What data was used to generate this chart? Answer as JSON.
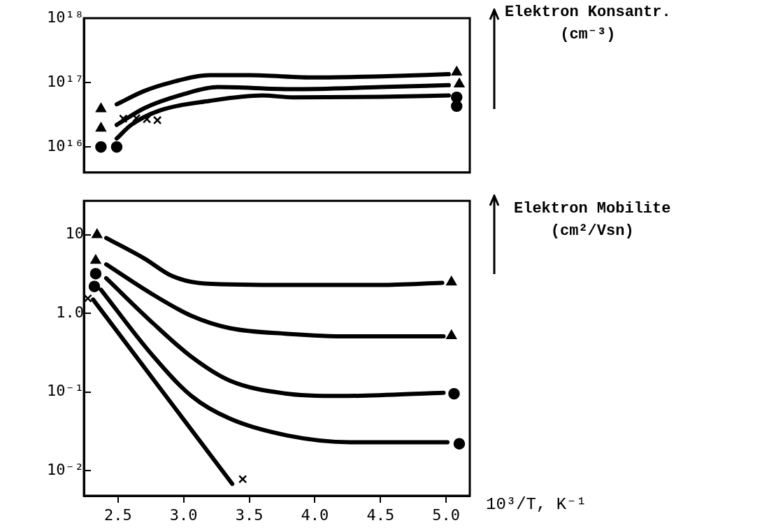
{
  "chart_data": [
    {
      "type": "line",
      "ylabel": "Elektron Konsantr.\n(cm⁻³)",
      "xlim": [
        2.24,
        5.18
      ],
      "ylim": [
        4000000000000000.0,
        1e+18
      ],
      "log": "y",
      "legend": false,
      "grid": false,
      "tick_labels": "y",
      "yticks": [
        {
          "value": 1e+16,
          "label": "10¹⁶"
        },
        {
          "value": 1e+17,
          "label": "10¹⁷"
        },
        {
          "value": 1e+18,
          "label": "10¹⁸"
        }
      ],
      "series": [
        {
          "type": "line",
          "marker": "none",
          "color": "#000000",
          "x": [
            2.49,
            2.7,
            2.9,
            3.2,
            3.5,
            4.0,
            4.5,
            5.02
          ],
          "values": [
            4.6e+16,
            7.4e+16,
            1e+17,
            1.3e+17,
            1.3e+17,
            1.2e+17,
            1.25e+17,
            1.35e+17
          ]
        },
        {
          "type": "line",
          "marker": "none",
          "color": "#000000",
          "x": [
            2.49,
            2.7,
            3.0,
            3.26,
            3.82,
            4.5,
            5.02
          ],
          "values": [
            2.2e+16,
            4e+16,
            6.6e+16,
            8.5e+16,
            7.9e+16,
            8.5e+16,
            9.1e+16
          ]
        },
        {
          "type": "line",
          "marker": "none",
          "color": "#000000",
          "x": [
            2.49,
            2.6,
            2.82,
            3.2,
            3.6,
            3.83,
            4.5,
            5.02
          ],
          "values": [
            1.35e+16,
            2.2e+16,
            3.7e+16,
            5.2e+16,
            6.3e+16,
            5.9e+16,
            6e+16,
            6.3e+16
          ]
        },
        {
          "type": "scatter",
          "marker": "triangle",
          "color": "#000000",
          "x": [
            2.37,
            5.08
          ],
          "values": [
            3.9e+16,
            1.45e+17
          ]
        },
        {
          "type": "scatter",
          "marker": "triangle",
          "color": "#000000",
          "x": [
            2.37,
            5.1
          ],
          "values": [
            1.95e+16,
            9.5e+16
          ]
        },
        {
          "type": "scatter",
          "marker": "circle",
          "color": "#000000",
          "x": [
            2.37,
            5.08
          ],
          "values": [
            1e+16,
            5.9e+16
          ]
        },
        {
          "type": "scatter",
          "marker": "circle",
          "color": "#000000",
          "x": [
            2.49,
            5.08
          ],
          "values": [
            1e+16,
            4.3e+16
          ]
        },
        {
          "type": "scatter",
          "marker": "cross",
          "color": "#000000",
          "x": [
            2.54,
            2.64,
            2.72,
            2.8
          ],
          "values": [
            2.75e+16,
            2.8e+16,
            2.7e+16,
            2.6e+16
          ]
        }
      ]
    },
    {
      "type": "line",
      "ylabel": "Elektron Mobilite\n(cm²/Vsn)",
      "xlabel": "10³/T, K⁻¹",
      "xlim": [
        2.24,
        5.18
      ],
      "ylim": [
        0.0048,
        27
      ],
      "log": "y",
      "legend": false,
      "grid": false,
      "xticks": [
        {
          "value": 2.5,
          "label": "2.5"
        },
        {
          "value": 3,
          "label": "3.0"
        },
        {
          "value": 3.5,
          "label": "3.5"
        },
        {
          "value": 4,
          "label": "4.0"
        },
        {
          "value": 4.5,
          "label": "4.5"
        },
        {
          "value": 5,
          "label": "5.0"
        }
      ],
      "yticks": [
        {
          "value": 0.01,
          "label": "10⁻²"
        },
        {
          "value": 0.1,
          "label": "10⁻¹"
        },
        {
          "value": 1,
          "label": "1.0"
        },
        {
          "value": 10,
          "label": "10"
        }
      ],
      "series": [
        {
          "type": "line",
          "marker": "none",
          "color": "#000000",
          "x": [
            2.41,
            2.7,
            2.91,
            3.16,
            3.8,
            4.5,
            4.97
          ],
          "values": [
            9.1,
            5.0,
            3.0,
            2.4,
            2.3,
            2.3,
            2.45
          ]
        },
        {
          "type": "line",
          "marker": "none",
          "color": "#000000",
          "x": [
            2.41,
            2.75,
            3.06,
            3.35,
            3.79,
            4.27,
            4.98
          ],
          "values": [
            4.2,
            1.8,
            0.93,
            0.65,
            0.55,
            0.51,
            0.51
          ]
        },
        {
          "type": "line",
          "marker": "none",
          "color": "#000000",
          "x": [
            2.41,
            2.77,
            3.06,
            3.35,
            3.77,
            4.2,
            4.98
          ],
          "values": [
            2.8,
            0.74,
            0.28,
            0.14,
            0.096,
            0.089,
            0.098
          ]
        },
        {
          "type": "line",
          "marker": "none",
          "color": "#000000",
          "x": [
            2.37,
            2.75,
            3.06,
            3.35,
            3.79,
            4.27,
            5.01
          ],
          "values": [
            2.0,
            0.31,
            0.089,
            0.046,
            0.028,
            0.023,
            0.023
          ]
        },
        {
          "type": "line",
          "marker": "none",
          "color": "#000000",
          "x": [
            2.31,
            3.37
          ],
          "values": [
            1.5,
            0.0068
          ]
        },
        {
          "type": "scatter",
          "marker": "triangle",
          "color": "#000000",
          "x": [
            2.34,
            5.04
          ],
          "values": [
            10,
            2.5
          ]
        },
        {
          "type": "scatter",
          "marker": "triangle",
          "color": "#000000",
          "x": [
            2.33,
            5.04
          ],
          "values": [
            4.7,
            0.52
          ]
        },
        {
          "type": "scatter",
          "marker": "circle",
          "color": "#000000",
          "x": [
            2.33,
            5.06
          ],
          "values": [
            3.2,
            0.095
          ]
        },
        {
          "type": "scatter",
          "marker": "circle",
          "color": "#000000",
          "x": [
            2.32,
            5.1
          ],
          "values": [
            2.2,
            0.022
          ]
        },
        {
          "type": "scatter",
          "marker": "cross",
          "color": "#000000",
          "x": [
            2.27,
            3.45
          ],
          "values": [
            1.55,
            0.0078
          ]
        }
      ]
    }
  ]
}
